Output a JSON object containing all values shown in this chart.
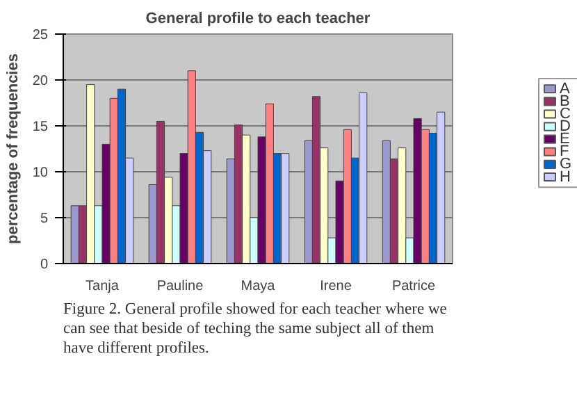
{
  "chart_data": {
    "type": "bar",
    "title": "General profile to each teacher",
    "ylabel": "percentage of frequencies",
    "categories": [
      "Tanja",
      "Pauline",
      "Maya",
      "Irene",
      "Patrice"
    ],
    "series": [
      {
        "name": "A",
        "color": "#9999cc",
        "values": [
          6.3,
          8.6,
          11.4,
          13.4,
          13.4
        ]
      },
      {
        "name": "B",
        "color": "#993366",
        "values": [
          6.3,
          15.5,
          15.1,
          18.2,
          11.4
        ]
      },
      {
        "name": "C",
        "color": "#ffffcc",
        "values": [
          19.5,
          9.4,
          14,
          12.6,
          12.6
        ]
      },
      {
        "name": "D",
        "color": "#ccffff",
        "values": [
          6.3,
          6.3,
          5,
          2.8,
          2.8
        ]
      },
      {
        "name": "E",
        "color": "#660066",
        "values": [
          13,
          12,
          13.8,
          9,
          15.8
        ]
      },
      {
        "name": "F",
        "color": "#ff8080",
        "values": [
          18,
          21,
          17.4,
          14.6,
          14.6
        ]
      },
      {
        "name": "G",
        "color": "#0066cc",
        "values": [
          19,
          14.3,
          12,
          11.5,
          14.2
        ]
      },
      {
        "name": "H",
        "color": "#ccccff",
        "values": [
          11.5,
          12.3,
          12,
          18.6,
          16.5
        ]
      }
    ],
    "ylim": [
      0,
      25
    ],
    "yticks": [
      0,
      5,
      10,
      15,
      20,
      25
    ],
    "grid": "y",
    "legend": "right",
    "annotations": [
      "Figure 2. General profile showed for each teacher where we can see that beside of teching the same subject  all of them have different profiles."
    ]
  }
}
